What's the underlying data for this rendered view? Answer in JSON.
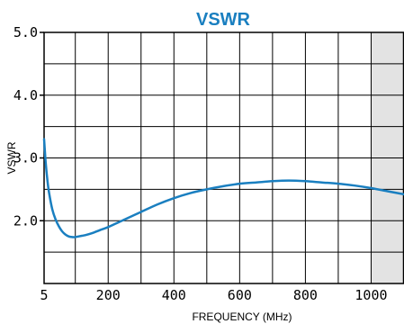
{
  "chart_data": {
    "type": "line",
    "title": "VSWR",
    "xlabel": "FREQUENCY (MHz)",
    "ylabel": "VSWR",
    "xlim": [
      5,
      1100
    ],
    "ylim": [
      1.0,
      5.0
    ],
    "grid": true,
    "legend": "none",
    "x_ticks": [
      5,
      200,
      400,
      600,
      800,
      1000
    ],
    "x_tick_labels": [
      "5",
      "200",
      "400",
      "600",
      "800",
      "1000"
    ],
    "y_ticks": [
      2.0,
      3.0,
      4.0,
      5.0
    ],
    "y_tick_labels": [
      "2.0",
      "3.0",
      "4.0",
      "5.0"
    ],
    "shaded_region": {
      "x_from": 1000,
      "x_to": 1100,
      "color": "#e3e3e3"
    },
    "series": [
      {
        "color": "#1a7fc0",
        "x": [
          5,
          10,
          15,
          20,
          30,
          40,
          50,
          60,
          70,
          80,
          90,
          100,
          110,
          120,
          130,
          150,
          175,
          200,
          250,
          300,
          350,
          400,
          450,
          500,
          550,
          600,
          650,
          700,
          750,
          800,
          850,
          900,
          950,
          1000,
          1050,
          1100
        ],
        "y": [
          3.3,
          2.92,
          2.65,
          2.45,
          2.18,
          2.02,
          1.91,
          1.83,
          1.78,
          1.75,
          1.74,
          1.74,
          1.75,
          1.76,
          1.77,
          1.8,
          1.85,
          1.9,
          2.02,
          2.14,
          2.26,
          2.36,
          2.44,
          2.5,
          2.55,
          2.59,
          2.61,
          2.63,
          2.64,
          2.63,
          2.61,
          2.59,
          2.56,
          2.52,
          2.47,
          2.42
        ]
      }
    ]
  },
  "colors": {
    "title": "#1a7fc0",
    "line": "#1a7fc0",
    "grid": "#000000",
    "shade": "#e3e3e3"
  }
}
